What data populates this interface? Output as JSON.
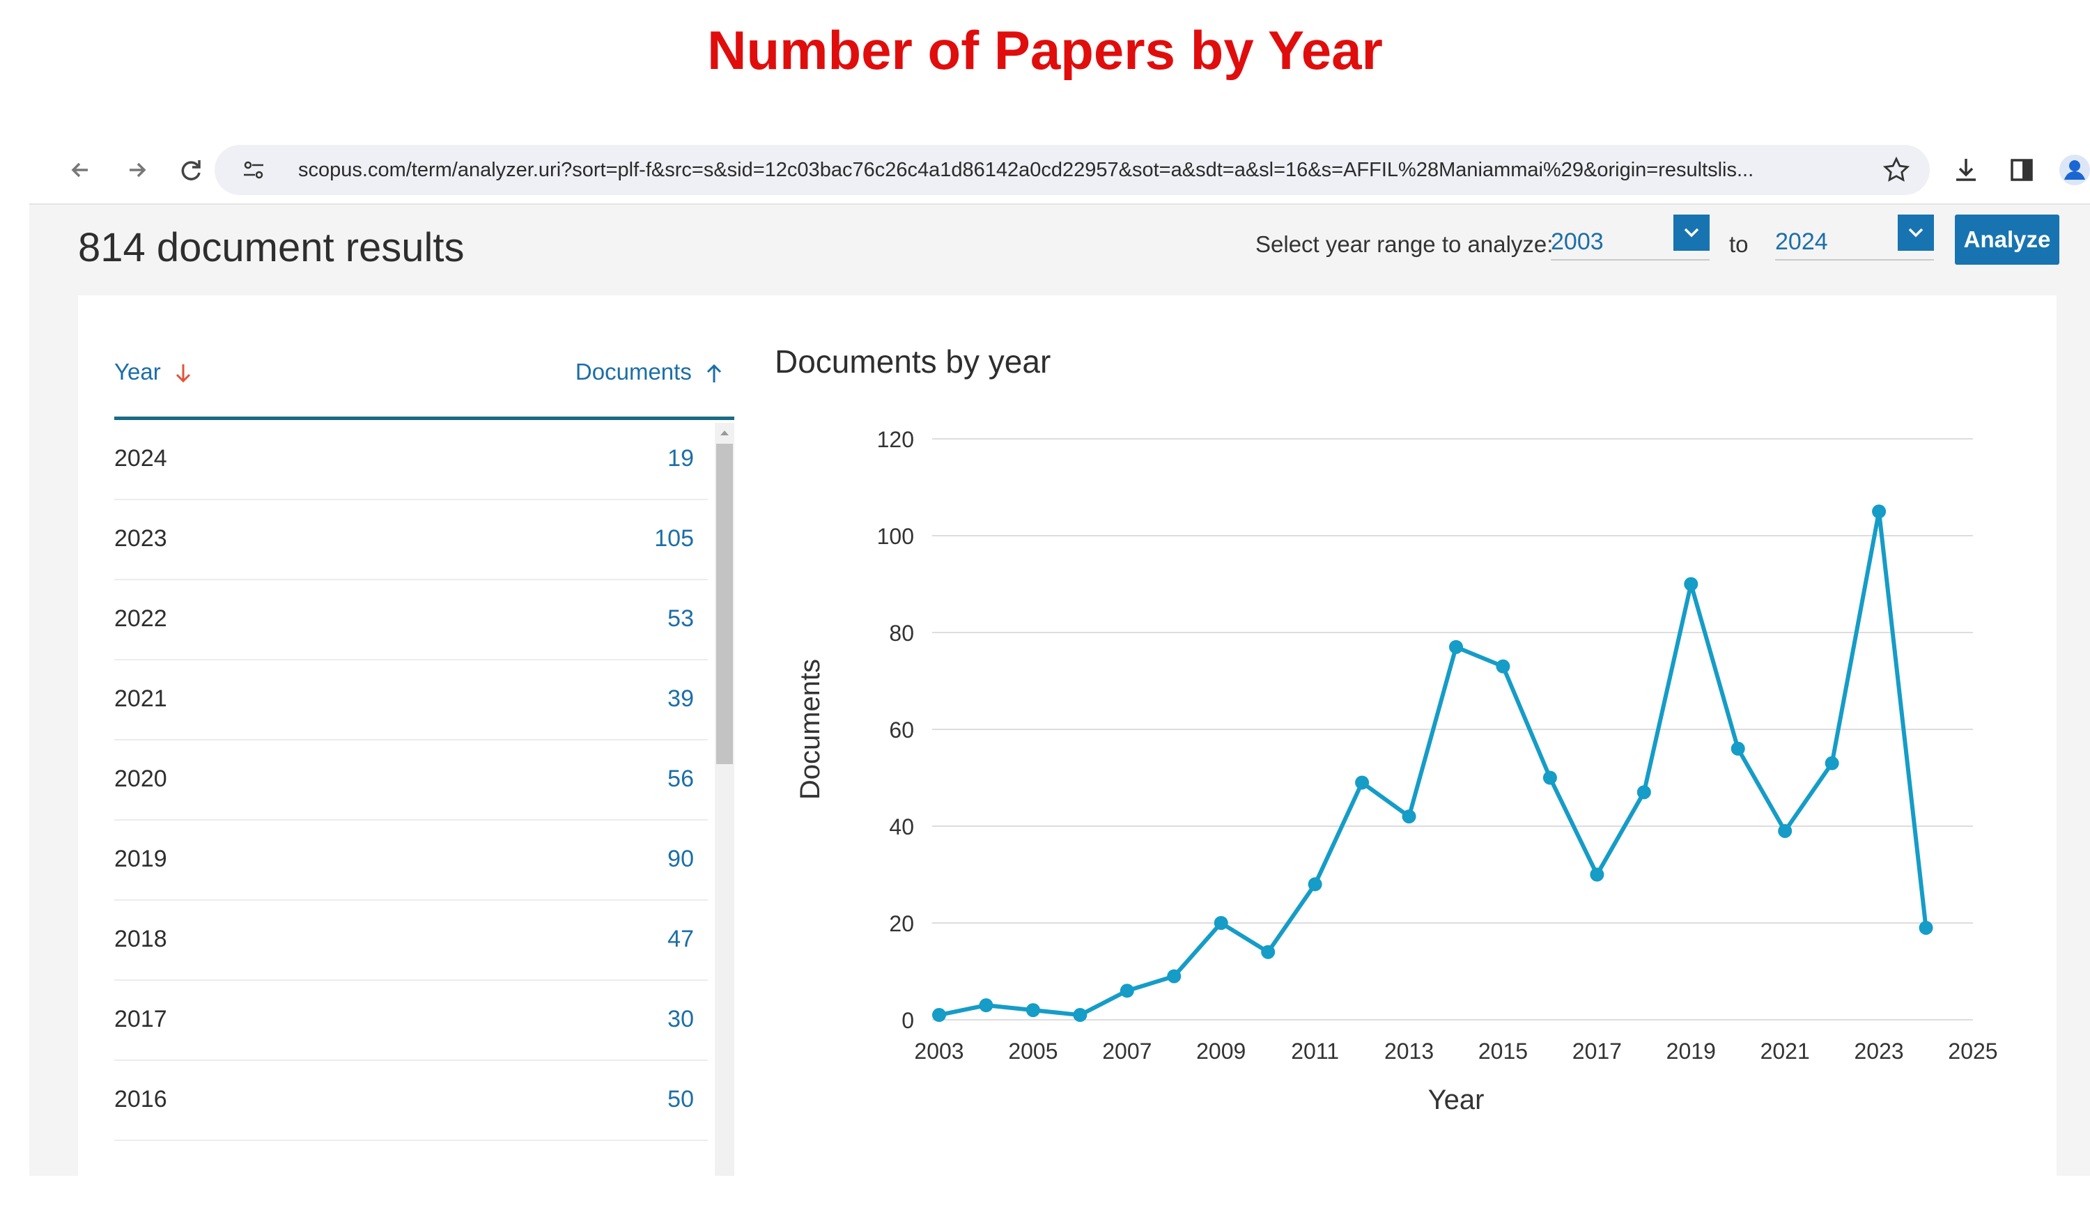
{
  "slide_title": "Number of Papers by Year",
  "browser": {
    "url": "scopus.com/term/analyzer.uri?sort=plf-f&src=s&sid=12c03bac76c26c4a1d86142a0cd22957&sot=a&sdt=a&sl=16&s=AFFIL%28Maniammai%29&origin=resultslis..."
  },
  "page": {
    "results_count": "814 document results",
    "year_range_label": "Select year range to analyze:",
    "from_year": "2003",
    "to_label": "to",
    "to_year": "2024",
    "analyze_label": "Analyze"
  },
  "table": {
    "col_year": "Year",
    "col_documents": "Documents",
    "rows": [
      {
        "year": "2024",
        "documents": "19"
      },
      {
        "year": "2023",
        "documents": "105"
      },
      {
        "year": "2022",
        "documents": "53"
      },
      {
        "year": "2021",
        "documents": "39"
      },
      {
        "year": "2020",
        "documents": "56"
      },
      {
        "year": "2019",
        "documents": "90"
      },
      {
        "year": "2018",
        "documents": "47"
      },
      {
        "year": "2017",
        "documents": "30"
      },
      {
        "year": "2016",
        "documents": "50"
      }
    ]
  },
  "chart_data": {
    "type": "line",
    "title": "Documents by year",
    "xlabel": "Year",
    "ylabel": "Documents",
    "x": [
      2003,
      2004,
      2005,
      2006,
      2007,
      2008,
      2009,
      2010,
      2011,
      2012,
      2013,
      2014,
      2015,
      2016,
      2017,
      2018,
      2019,
      2020,
      2021,
      2022,
      2023,
      2024
    ],
    "series": [
      {
        "values": [
          1,
          3,
          2,
          1,
          6,
          9,
          20,
          14,
          28,
          49,
          42,
          77,
          73,
          50,
          30,
          47,
          90,
          56,
          39,
          53,
          105,
          19
        ]
      }
    ],
    "x_ticks": [
      2003,
      2005,
      2007,
      2009,
      2011,
      2013,
      2015,
      2017,
      2019,
      2021,
      2023,
      2025
    ],
    "y_ticks": [
      0,
      20,
      40,
      60,
      80,
      100,
      120
    ],
    "xlim": [
      2003,
      2025
    ],
    "ylim": [
      0,
      120
    ],
    "grid": "horizontal",
    "legend": "none",
    "line_color": "#159cc7"
  }
}
